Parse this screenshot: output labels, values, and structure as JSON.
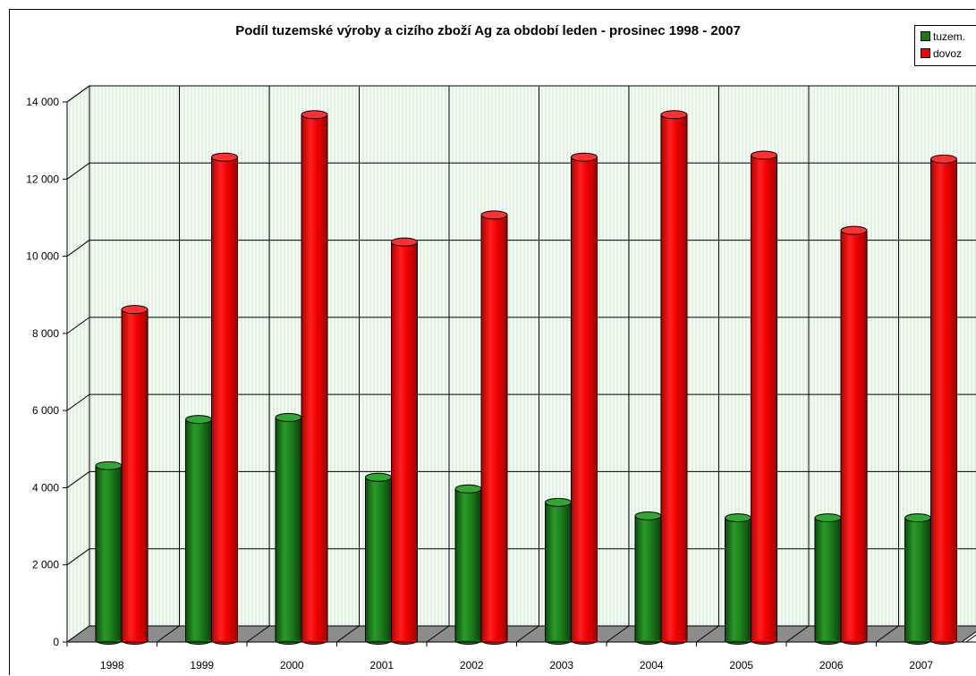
{
  "chart_data": {
    "type": "bar",
    "title": "Podíl tuzemské výroby a cizího zboží Ag za období leden - prosinec 1998 - 2007",
    "xlabel": "",
    "ylabel": "",
    "categories": [
      "1998",
      "1999",
      "2000",
      "2001",
      "2002",
      "2003",
      "2004",
      "2005",
      "2006",
      "2007"
    ],
    "series": [
      {
        "name": "tuzem.",
        "color": "#1a7a1a",
        "values": [
          4500,
          5700,
          5750,
          4200,
          3900,
          3550,
          3200,
          3150,
          3150,
          3150
        ]
      },
      {
        "name": "dovoz",
        "color": "#ff0000",
        "values": [
          8550,
          12500,
          13600,
          10300,
          11000,
          12500,
          13600,
          12550,
          10600,
          12450
        ]
      }
    ],
    "ylim": [
      0,
      14000
    ],
    "yticks": [
      "0",
      "2 000",
      "4 000",
      "6 000",
      "8 000",
      "10 000",
      "12 000",
      "14 000"
    ],
    "grid": true,
    "legend_position": "top-right",
    "three_d": true
  }
}
